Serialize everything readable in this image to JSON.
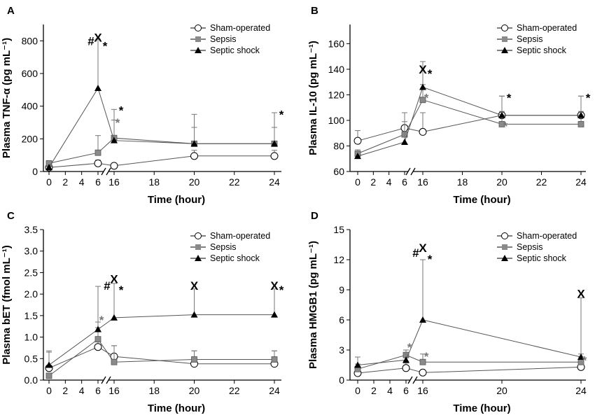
{
  "chart_data": [
    {
      "panel_label": "A",
      "type": "line",
      "xlabel": "Time (hour)",
      "ylabel": "Plasma TNF-α (pg mL⁻¹)",
      "ylim": [
        0,
        900
      ],
      "yticks": [
        0,
        200,
        400,
        600,
        800
      ],
      "xticks_left": [
        0,
        2,
        4,
        6
      ],
      "xticks_right": [
        16,
        18,
        20,
        22,
        24
      ],
      "legend": "top-right",
      "series": [
        {
          "name": "Sham-operated",
          "marker": "circle",
          "points": [
            [
              0,
              25,
              5
            ],
            [
              6,
              50,
              20
            ],
            [
              16,
              35,
              15
            ],
            [
              20,
              95,
              35
            ],
            [
              24,
              95,
              35
            ]
          ]
        },
        {
          "name": "Sepsis",
          "marker": "square",
          "points": [
            [
              0,
              50,
              8
            ],
            [
              6,
              115,
              105
            ],
            [
              16,
              205,
              110
            ],
            [
              20,
              170,
              100
            ],
            [
              24,
              170,
              100
            ]
          ]
        },
        {
          "name": "Septic shock",
          "marker": "triangle",
          "points": [
            [
              0,
              25,
              5
            ],
            [
              6,
              510,
              300
            ],
            [
              16,
              190,
              190
            ],
            [
              20,
              170,
              180
            ],
            [
              24,
              170,
              190
            ]
          ]
        }
      ],
      "annotations": [
        {
          "text": "#",
          "x": 6,
          "y": 800,
          "color": "#000000"
        },
        {
          "text": "X",
          "x": 6,
          "y": 820,
          "color": "#000000"
        },
        {
          "text": "*",
          "x": 6,
          "y": 795,
          "color": "#000000"
        },
        {
          "text": "*",
          "x": 16,
          "y": 400,
          "color": "#000000"
        },
        {
          "text": "*",
          "x": 16,
          "y": 325,
          "color": "#777777"
        },
        {
          "text": "*",
          "x": 24,
          "y": 375,
          "color": "#000000"
        }
      ]
    },
    {
      "panel_label": "B",
      "type": "line",
      "xlabel": "Time (hour)",
      "ylabel": "Plasma IL-10 (pg mL⁻¹)",
      "ylim": [
        60,
        175
      ],
      "yticks": [
        60,
        80,
        100,
        120,
        140,
        160
      ],
      "xticks_left": [
        0,
        2,
        4,
        6
      ],
      "xticks_right": [
        16,
        18,
        20,
        22,
        24
      ],
      "legend": "top-right",
      "series": [
        {
          "name": "Sham-operated",
          "marker": "circle",
          "points": [
            [
              0,
              84,
              8
            ],
            [
              6,
              94,
              12
            ],
            [
              16,
              91,
              15
            ],
            [
              20,
              104,
              15
            ],
            [
              24,
              104,
              15
            ]
          ]
        },
        {
          "name": "Sepsis",
          "marker": "square",
          "points": [
            [
              0,
              74,
              3
            ],
            [
              6,
              89,
              10
            ],
            [
              16,
              116,
              12
            ],
            [
              20,
              97,
              10
            ],
            [
              24,
              97,
              10
            ]
          ]
        },
        {
          "name": "Septic shock",
          "marker": "triangle",
          "points": [
            [
              0,
              72,
              4
            ],
            [
              6,
              83,
              8
            ],
            [
              16,
              126,
              20
            ],
            [
              20,
              104,
              15
            ],
            [
              24,
              104,
              15
            ]
          ]
        }
      ],
      "annotations": [
        {
          "text": "X",
          "x": 16,
          "y": 140,
          "color": "#000000"
        },
        {
          "text": "*",
          "x": 16,
          "y": 140,
          "color": "#000000"
        },
        {
          "text": "*",
          "x": 16,
          "y": 121,
          "color": "#777777"
        },
        {
          "text": "*",
          "x": 20,
          "y": 121,
          "color": "#000000"
        },
        {
          "text": "*",
          "x": 20,
          "y": 99,
          "color": "#777777"
        },
        {
          "text": "*",
          "x": 24,
          "y": 121,
          "color": "#000000"
        }
      ]
    },
    {
      "panel_label": "C",
      "type": "line",
      "xlabel": "Time (hour)",
      "ylabel": "Plasma bET (fmol mL⁻¹)",
      "ylim": [
        0,
        3.5
      ],
      "yticks": [
        0,
        0.5,
        1.0,
        1.5,
        2.0,
        2.5,
        3.0,
        3.5
      ],
      "xticks_left": [
        0,
        2,
        4,
        6
      ],
      "xticks_right": [
        16,
        18,
        20,
        22,
        24
      ],
      "legend": "top-right",
      "series": [
        {
          "name": "Sham-operated",
          "marker": "circle",
          "points": [
            [
              0,
              0.28,
              0.4
            ],
            [
              6,
              0.77,
              0.45
            ],
            [
              16,
              0.55,
              0.25
            ],
            [
              20,
              0.38,
              0.3
            ],
            [
              24,
              0.38,
              0.3
            ]
          ]
        },
        {
          "name": "Sepsis",
          "marker": "square",
          "points": [
            [
              0,
              0.1,
              0.05
            ],
            [
              6,
              0.95,
              0.4
            ],
            [
              16,
              0.42,
              0.38
            ],
            [
              20,
              0.48,
              0.2
            ],
            [
              24,
              0.48,
              0.2
            ]
          ]
        },
        {
          "name": "Septic shock",
          "marker": "triangle",
          "points": [
            [
              0,
              0.35,
              0.3
            ],
            [
              6,
              1.18,
              1.0
            ],
            [
              16,
              1.45,
              0.8
            ],
            [
              20,
              1.52,
              0.6
            ],
            [
              24,
              1.52,
              0.6
            ]
          ]
        }
      ],
      "annotations": [
        {
          "text": "*",
          "x": 6,
          "y": 1.5,
          "color": "#777777"
        },
        {
          "text": "#",
          "x": 16,
          "y": 2.2,
          "color": "#000000"
        },
        {
          "text": "X",
          "x": 16,
          "y": 2.35,
          "color": "#000000"
        },
        {
          "text": "*",
          "x": 16,
          "y": 2.2,
          "color": "#000000"
        },
        {
          "text": "X",
          "x": 20,
          "y": 2.2,
          "color": "#000000"
        },
        {
          "text": "X",
          "x": 24,
          "y": 2.2,
          "color": "#000000"
        },
        {
          "text": "*",
          "x": 24,
          "y": 2.2,
          "color": "#000000"
        }
      ]
    },
    {
      "panel_label": "D",
      "type": "line",
      "xlabel": "Time (hour)",
      "ylabel": "Plasma HMGB1 (pg mL⁻¹)",
      "ylim": [
        0,
        15
      ],
      "yticks": [
        0,
        3,
        6,
        9,
        12,
        15
      ],
      "xticks_left": [
        0,
        2,
        4,
        6
      ],
      "xticks_right": [
        16,
        20,
        24
      ],
      "legend": "top-right",
      "series": [
        {
          "name": "Sham-operated",
          "marker": "circle",
          "points": [
            [
              0,
              0.7,
              0.3
            ],
            [
              6,
              1.2,
              0.5
            ],
            [
              16,
              0.75,
              0.2
            ],
            [
              24,
              1.3,
              1.0
            ]
          ]
        },
        {
          "name": "Sepsis",
          "marker": "square",
          "points": [
            [
              0,
              1.1,
              0.5
            ],
            [
              6,
              2.5,
              0.5
            ],
            [
              16,
              1.8,
              0.8
            ],
            [
              24,
              1.8,
              0.8
            ]
          ]
        },
        {
          "name": "Septic shock",
          "marker": "triangle",
          "points": [
            [
              0,
              1.5,
              0.8
            ],
            [
              6,
              2.0,
              0.6
            ],
            [
              16,
              6.0,
              6.0
            ],
            [
              24,
              2.3,
              5.9
            ]
          ]
        }
      ],
      "annotations": [
        {
          "text": "*",
          "x": 6,
          "y": 3.7,
          "color": "#777777"
        },
        {
          "text": "#",
          "x": 16,
          "y": 12.7,
          "color": "#000000"
        },
        {
          "text": "X",
          "x": 16,
          "y": 13.2,
          "color": "#000000"
        },
        {
          "text": "*",
          "x": 16,
          "y": 12.5,
          "color": "#000000"
        },
        {
          "text": "*",
          "x": 16,
          "y": 2.8,
          "color": "#777777"
        },
        {
          "text": "X",
          "x": 24,
          "y": 8.6,
          "color": "#000000"
        },
        {
          "text": "*",
          "x": 24,
          "y": 2.4,
          "color": "#777777"
        }
      ]
    }
  ],
  "style": {
    "sham_fill": "#ffffff",
    "sepsis_fill": "#8a8a8a",
    "shock_fill": "#000000",
    "line_color": "#555555",
    "gray_annotation": "#777777"
  }
}
